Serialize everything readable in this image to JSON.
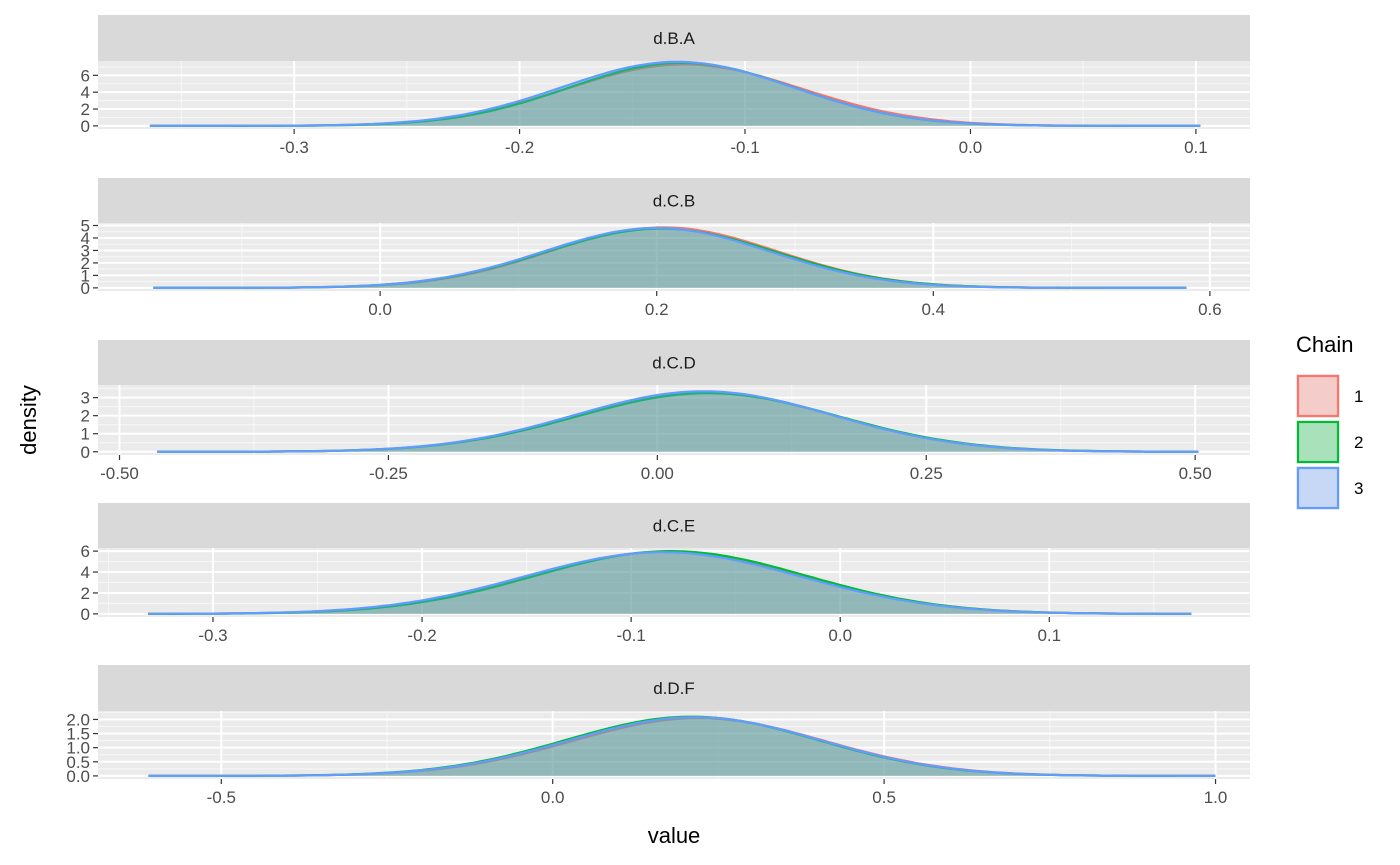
{
  "chart_data": {
    "type": "area",
    "xlabel": "value",
    "ylabel": "density",
    "legend": {
      "title": "Chain",
      "placement": "right",
      "entries": [
        {
          "label": "1",
          "color": "#F8766D"
        },
        {
          "label": "2",
          "color": "#00BA38"
        },
        {
          "label": "3",
          "color": "#619CFF"
        }
      ]
    },
    "panels": [
      {
        "name": "d.B.A",
        "xlim": [
          -0.387,
          0.124
        ],
        "ylim": [
          -0.37,
          7.7
        ],
        "xticks": [
          -0.3,
          -0.2,
          -0.1,
          0.0,
          0.1
        ],
        "xtick_labels": [
          "-0.3",
          "-0.2",
          "-0.1",
          "0.0",
          "0.1"
        ],
        "yticks": [
          0,
          2,
          4,
          6
        ],
        "ytick_labels": [
          "0",
          "2",
          "4",
          "6"
        ],
        "x_range": [
          -0.364,
          0.102
        ],
        "series": [
          {
            "name": "1",
            "mean": -0.127,
            "sd": 0.052,
            "peak": 7.3
          },
          {
            "name": "2",
            "mean": -0.128,
            "sd": 0.05,
            "peak": 7.5
          },
          {
            "name": "3",
            "mean": -0.13,
            "sd": 0.051,
            "peak": 7.6
          }
        ]
      },
      {
        "name": "d.C.B",
        "xlim": [
          -0.204,
          0.629
        ],
        "ylim": [
          -0.25,
          5.2
        ],
        "xticks": [
          0.0,
          0.2,
          0.4,
          0.6
        ],
        "xtick_labels": [
          "0.0",
          "0.2",
          "0.4",
          "0.6"
        ],
        "yticks": [
          0,
          1,
          2,
          3,
          4,
          5
        ],
        "ytick_labels": [
          "0",
          "1",
          "2",
          "3",
          "4",
          "5"
        ],
        "x_range": [
          -0.164,
          0.583
        ],
        "series": [
          {
            "name": "1",
            "mean": 0.205,
            "sd": 0.082,
            "peak": 4.85
          },
          {
            "name": "2",
            "mean": 0.203,
            "sd": 0.083,
            "peak": 4.75
          },
          {
            "name": "3",
            "mean": 0.2,
            "sd": 0.082,
            "peak": 4.8
          }
        ]
      },
      {
        "name": "d.C.D",
        "xlim": [
          -0.52,
          0.551
        ],
        "ylim": [
          -0.18,
          3.7
        ],
        "xticks": [
          -0.5,
          -0.25,
          0.0,
          0.25,
          0.5
        ],
        "xtick_labels": [
          "-0.50",
          "-0.25",
          "0.00",
          "0.25",
          "0.50"
        ],
        "yticks": [
          0,
          1,
          2,
          3
        ],
        "ytick_labels": [
          "0",
          "1",
          "2",
          "3"
        ],
        "x_range": [
          -0.465,
          0.503
        ],
        "series": [
          {
            "name": "1",
            "mean": 0.045,
            "sd": 0.12,
            "peak": 3.3
          },
          {
            "name": "2",
            "mean": 0.047,
            "sd": 0.121,
            "peak": 3.25
          },
          {
            "name": "3",
            "mean": 0.043,
            "sd": 0.12,
            "peak": 3.35
          }
        ]
      },
      {
        "name": "d.C.E",
        "xlim": [
          -0.355,
          0.196
        ],
        "ylim": [
          -0.3,
          6.3
        ],
        "xticks": [
          -0.3,
          -0.2,
          -0.1,
          0.0,
          0.1
        ],
        "xtick_labels": [
          "-0.3",
          "-0.2",
          "-0.1",
          "0.0",
          "0.1"
        ],
        "yticks": [
          0,
          2,
          4,
          6
        ],
        "ytick_labels": [
          "0",
          "2",
          "4",
          "6"
        ],
        "x_range": [
          -0.331,
          0.168
        ],
        "series": [
          {
            "name": "1",
            "mean": -0.083,
            "sd": 0.066,
            "peak": 5.95
          },
          {
            "name": "2",
            "mean": -0.081,
            "sd": 0.065,
            "peak": 6.0
          },
          {
            "name": "3",
            "mean": -0.085,
            "sd": 0.066,
            "peak": 5.9
          }
        ]
      },
      {
        "name": "d.D.F",
        "xlim": [
          -0.686,
          1.052
        ],
        "ylim": [
          -0.11,
          2.3
        ],
        "xticks": [
          -0.5,
          0.0,
          0.5,
          1.0
        ],
        "xtick_labels": [
          "-0.5",
          "0.0",
          "0.5",
          "1.0"
        ],
        "yticks": [
          0,
          0.5,
          1.0,
          1.5,
          2.0
        ],
        "ytick_labels": [
          "0.0",
          "0.5",
          "1.0",
          "1.5",
          "2.0"
        ],
        "x_range": [
          -0.61,
          1.0
        ],
        "series": [
          {
            "name": "1",
            "mean": 0.22,
            "sd": 0.19,
            "peak": 2.05
          },
          {
            "name": "2",
            "mean": 0.21,
            "sd": 0.19,
            "peak": 2.1
          },
          {
            "name": "3",
            "mean": 0.215,
            "sd": 0.19,
            "peak": 2.08
          }
        ]
      }
    ]
  }
}
